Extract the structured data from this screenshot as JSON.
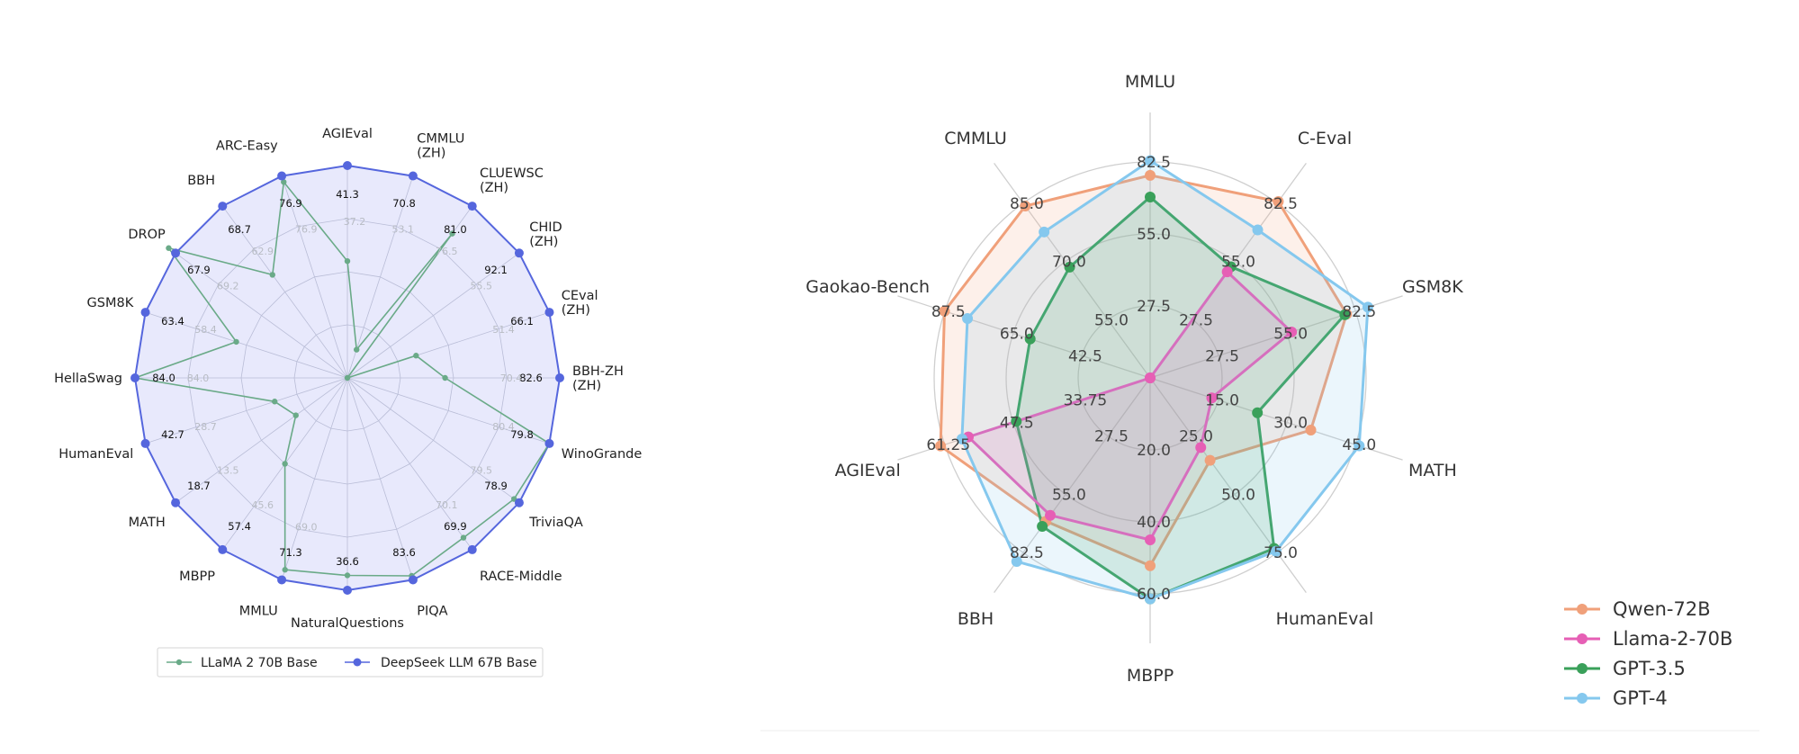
{
  "chart_data": [
    {
      "type": "radar",
      "axes": [
        "AGIEval",
        "CMMLU\n(ZH)",
        "CLUEWSC\n(ZH)",
        "CHID\n(ZH)",
        "CEval\n(ZH)",
        "BBH-ZH\n(ZH)",
        "WinoGrande",
        "TriviaQA",
        "RACE-Middle",
        "PIQA",
        "NaturalQuestions",
        "MMLU",
        "MBPP",
        "MATH",
        "HumanEval",
        "HellaSwag",
        "GSM8K",
        "DROP",
        "BBH",
        "ARC-Easy"
      ],
      "series": [
        {
          "name": "LLaMA 2 70B Base",
          "color": "#6aaa88",
          "values": [
            37.2,
            53.1,
            76.5,
            55.5,
            51.4,
            70.4,
            80.4,
            79.5,
            70.1,
            83.6,
            36.6,
            69.0,
            45.6,
            13.5,
            28.7,
            84.0,
            58.4,
            69.2,
            62.9,
            76.9
          ]
        },
        {
          "name": "DeepSeek LLM 67B Base",
          "color": "#5566dd",
          "values": [
            41.3,
            70.8,
            81.0,
            92.1,
            66.1,
            82.6,
            79.8,
            78.9,
            69.9,
            83.6,
            36.6,
            71.3,
            57.4,
            18.7,
            42.7,
            84.0,
            63.4,
            67.9,
            68.7,
            76.9
          ]
        }
      ],
      "value_labels_primary": [
        "41.3",
        "70.8",
        "81.0",
        "92.1",
        "66.1",
        "82.6",
        "79.8",
        "78.9",
        "69.9",
        "83.6",
        "36.6",
        "71.3",
        "57.4",
        "18.7",
        "42.7",
        "84.0",
        "63.4",
        "67.9",
        "68.7",
        "76.9"
      ],
      "value_labels_secondary": [
        "37.2",
        "53.1",
        "76.5",
        "55.5",
        "51.4",
        "70.4",
        "80.4",
        "79.5",
        "70.1",
        "",
        "",
        "69.0",
        "45.6",
        "13.5",
        "28.7",
        "84.0",
        "58.4",
        "69.2",
        "62.9",
        "76.9"
      ],
      "legend": "bottom",
      "grid": true
    },
    {
      "type": "radar",
      "axes": [
        "MMLU",
        "C-Eval",
        "GSM8K",
        "MATH",
        "HumanEval",
        "MBPP",
        "BBH",
        "AGIEval",
        "Gaokao-Bench",
        "CMMLU"
      ],
      "axis_ranges": [
        [
          0,
          82.5
        ],
        [
          0,
          82.5
        ],
        [
          0,
          82.5
        ],
        [
          0,
          45.0
        ],
        [
          0,
          75.0
        ],
        [
          0,
          60.0
        ],
        [
          0,
          82.5
        ],
        [
          0,
          61.25
        ],
        [
          0,
          87.5
        ],
        [
          0,
          85.0
        ]
      ],
      "tick_labels": [
        [
          "27.5",
          "55.0",
          "82.5"
        ],
        [
          "27.5",
          "55.0",
          "82.5"
        ],
        [
          "27.5",
          "55.0",
          "82.5"
        ],
        [
          "15.0",
          "30.0",
          "45.0"
        ],
        [
          "25.0",
          "50.0",
          "75.0"
        ],
        [
          "20.0",
          "40.0",
          "60.0"
        ],
        [
          "27.5",
          "55.0",
          "82.5"
        ],
        [
          "33.75",
          "47.5",
          "61.25"
        ],
        [
          "42.5",
          "65.0",
          "87.5"
        ],
        [
          "55.0",
          "70.0",
          "85.0"
        ]
      ],
      "series": [
        {
          "name": "Qwen-72B",
          "color": "#f0a07a",
          "values": [
            77.4,
            83.3,
            78.9,
            35.2,
            35.4,
            52.2,
            67.7,
            62.5,
            87.6,
            83.6
          ]
        },
        {
          "name": "Llama-2-70B",
          "color": "#e65fb5",
          "values": [
            0,
            50.1,
            56.8,
            13.5,
            29.9,
            45.0,
            64.9,
            54.2,
            0,
            0
          ]
        },
        {
          "name": "GPT-3.5",
          "color": "#3aa05a",
          "values": [
            69.1,
            52.5,
            78.2,
            23.5,
            73.2,
            61.4,
            70.1,
            39.9,
            51.1,
            53.9
          ]
        },
        {
          "name": "GPT-4",
          "color": "#85c8ee",
          "values": [
            83.0,
            69.9,
            91.4,
            45.8,
            74.4,
            61.4,
            86.7,
            56.1,
            77.8,
            71.0
          ]
        }
      ],
      "legend": "bottom-right",
      "grid": true
    }
  ]
}
